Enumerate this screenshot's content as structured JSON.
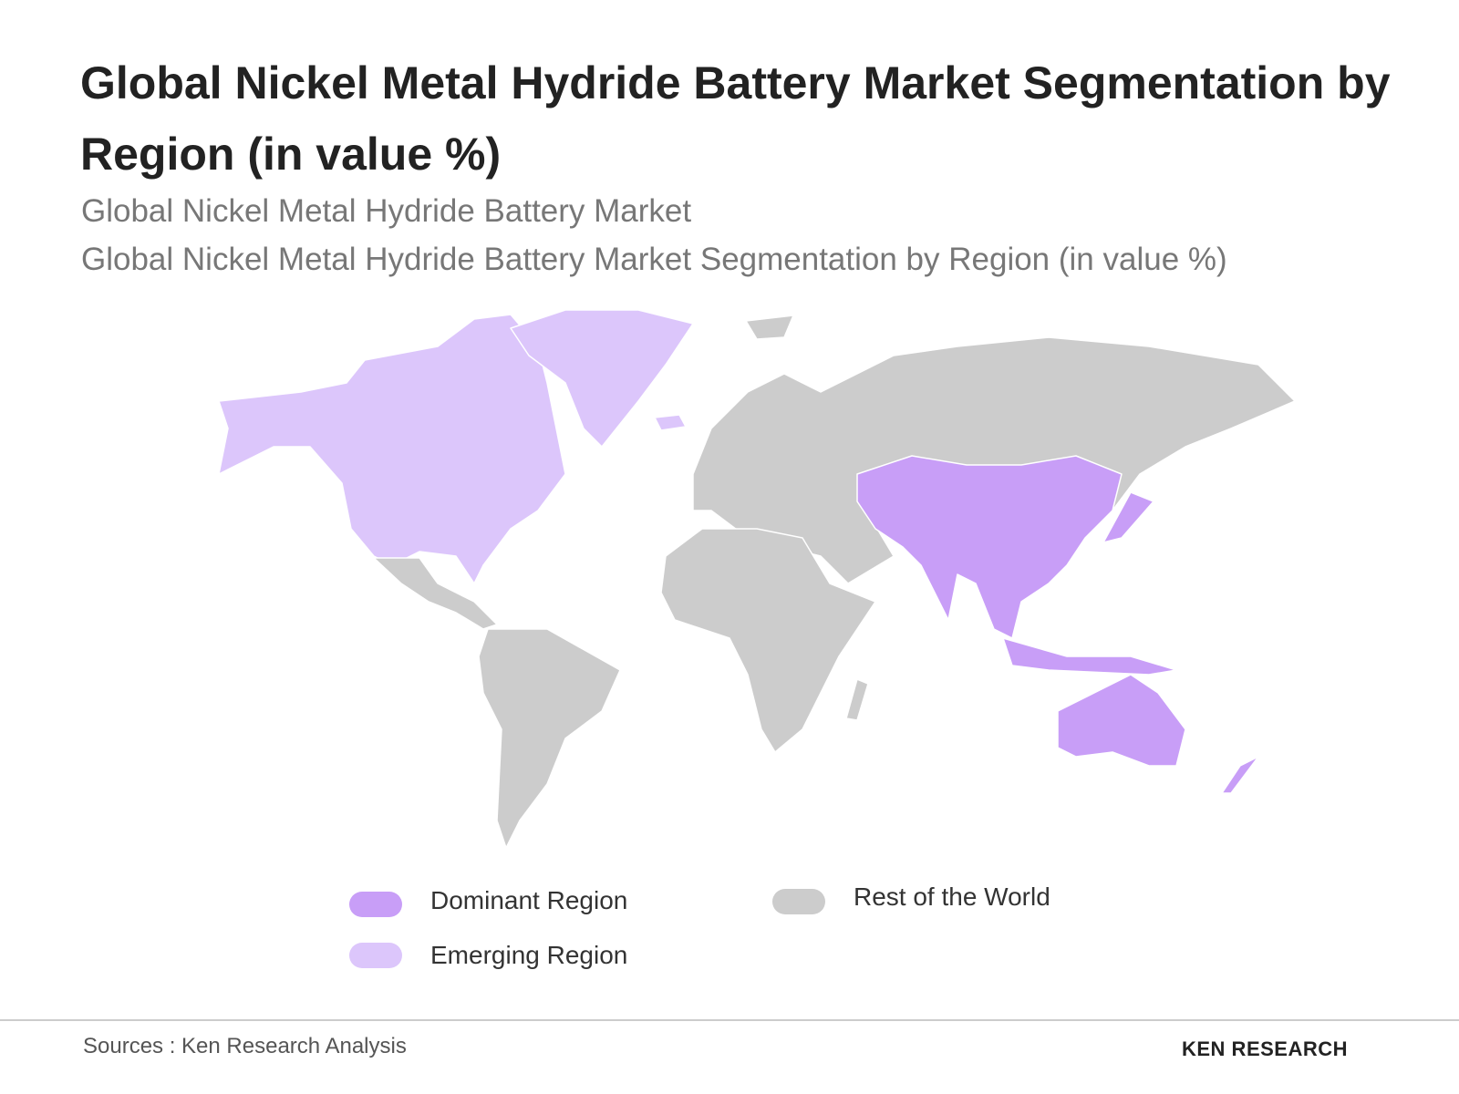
{
  "header": {
    "title": "Global Nickel Metal Hydride Battery Market Segmentation by Region (in value %)",
    "subtitle_1": "Global Nickel Metal Hydride Battery Market",
    "subtitle_2": "Global Nickel Metal Hydride Battery Market Segmentation by Region (in value %)"
  },
  "legend": [
    {
      "label": "Dominant Region",
      "color": "#c89ef7"
    },
    {
      "label": "Emerging Region",
      "color": "#dcc6fb"
    },
    {
      "label": "Rest of the World",
      "color": "#cccccc"
    }
  ],
  "footer": {
    "source": "Sources : Ken Research Analysis",
    "logo": "KEN RESEARCH"
  }
}
